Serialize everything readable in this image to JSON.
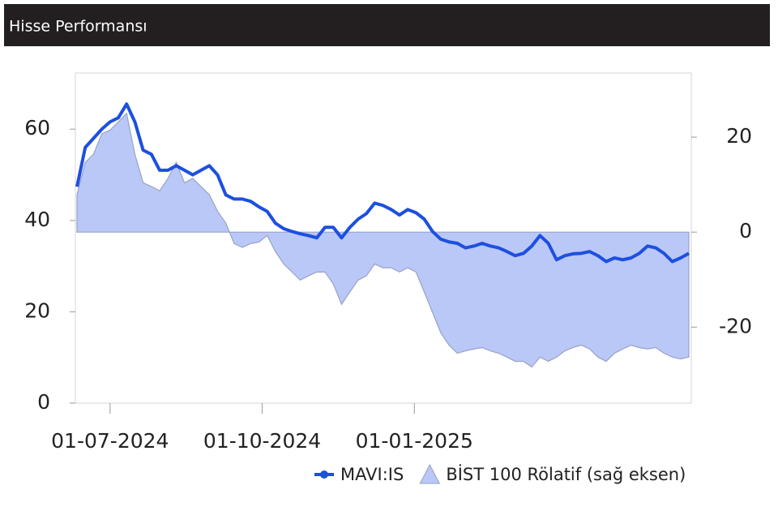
{
  "chart_data": {
    "type": "line",
    "title": "Hisse Performansı",
    "x": [
      "2024-06-11",
      "2024-06-16",
      "2024-06-21",
      "2024-06-26",
      "2024-07-01",
      "2024-07-06",
      "2024-07-11",
      "2024-07-16",
      "2024-07-21",
      "2024-07-26",
      "2024-07-31",
      "2024-08-05",
      "2024-08-10",
      "2024-08-15",
      "2024-08-20",
      "2024-08-25",
      "2024-08-30",
      "2024-09-04",
      "2024-09-09",
      "2024-09-14",
      "2024-09-19",
      "2024-09-24",
      "2024-09-29",
      "2024-10-04",
      "2024-10-09",
      "2024-10-14",
      "2024-10-19",
      "2024-10-24",
      "2024-10-29",
      "2024-11-03",
      "2024-11-08",
      "2024-11-13",
      "2024-11-18",
      "2024-11-23",
      "2024-11-28",
      "2024-12-03",
      "2024-12-08",
      "2024-12-13",
      "2024-12-18",
      "2024-12-23",
      "2024-12-28",
      "2025-01-02",
      "2025-01-07",
      "2025-01-12",
      "2025-01-17",
      "2025-01-22",
      "2025-01-27",
      "2025-02-01",
      "2025-02-06",
      "2025-02-11",
      "2025-02-16",
      "2025-02-21",
      "2025-02-26",
      "2025-03-03",
      "2025-03-08",
      "2025-03-13",
      "2025-03-18",
      "2025-03-23",
      "2025-03-28",
      "2025-04-02",
      "2025-04-07",
      "2025-04-12",
      "2025-04-17",
      "2025-04-22",
      "2025-04-27",
      "2025-05-02",
      "2025-05-07",
      "2025-05-12",
      "2025-05-17",
      "2025-05-22",
      "2025-05-27",
      "2025-06-01",
      "2025-06-06",
      "2025-06-11",
      "2025-06-16"
    ],
    "series": [
      {
        "name": "MAVI:IS",
        "color": "#1d4fe0",
        "values": [
          47.4,
          56,
          58,
          60,
          61.6,
          62.5,
          65.5,
          61.6,
          55.4,
          54.5,
          51,
          51,
          52,
          51,
          50,
          51,
          52,
          50,
          45.6,
          44.7,
          44.7,
          44.2,
          43,
          42,
          39.4,
          38.2,
          37.6,
          37.1,
          36.7,
          36.2,
          38.5,
          38.5,
          36.2,
          38.5,
          40.3,
          41.5,
          43.8,
          43.3,
          42.4,
          41.2,
          42.4,
          41.7,
          40.3,
          37.6,
          35.9,
          35.3,
          35,
          34,
          34.4,
          35,
          34.4,
          34,
          33.2,
          32.3,
          32.8,
          34.4,
          36.7,
          35,
          31.4,
          32.3,
          32.7,
          32.8,
          33.2,
          32.3,
          31,
          31.8,
          31.4,
          31.8,
          32.8,
          34.4,
          34,
          32.8,
          31,
          31.8,
          32.8
        ]
      },
      {
        "name": "BİST 100 Rölatif (sağ eksen)",
        "color": "#b9c8f6",
        "axis": "y2",
        "type": "area",
        "values": [
          7.9,
          14.7,
          16.4,
          20.7,
          21.5,
          23.2,
          25,
          16.4,
          10.4,
          9.6,
          8.7,
          11.3,
          14.7,
          10.4,
          11.3,
          9.6,
          7.9,
          4.4,
          1.9,
          -2.4,
          -3.2,
          -2.4,
          -2.1,
          -0.7,
          -4.1,
          -6.7,
          -8.4,
          -10.1,
          -9.2,
          -8.4,
          -8.4,
          -10.9,
          -15.2,
          -12.6,
          -10.1,
          -9.2,
          -6.7,
          -7.5,
          -7.5,
          -8.4,
          -7.5,
          -8.4,
          -12.6,
          -16.9,
          -21.2,
          -23.8,
          -25.5,
          -25,
          -24.6,
          -24.3,
          -25,
          -25.5,
          -26.3,
          -27.2,
          -27.2,
          -28.4,
          -26.3,
          -27.2,
          -26.3,
          -25,
          -24.3,
          -23.8,
          -24.6,
          -26.3,
          -27.2,
          -25.5,
          -24.6,
          -23.8,
          -24.3,
          -24.6,
          -24.3,
          -25.5,
          -26.3,
          -26.7,
          -26.3
        ]
      }
    ],
    "xlim": [
      "2024-06-11",
      "2025-06-16"
    ],
    "xticks": [
      {
        "value": "2024-07-01",
        "label": "01-07-2024"
      },
      {
        "value": "2024-10-01",
        "label": "01-10-2024"
      },
      {
        "value": "2025-01-01",
        "label": "01-01-2025"
      }
    ],
    "ylim": [
      0,
      72.3
    ],
    "yticks": [
      0,
      20,
      40,
      60
    ],
    "y2lim": [
      -36,
      33.5
    ],
    "y2ticks": [
      -20,
      0,
      20
    ]
  }
}
